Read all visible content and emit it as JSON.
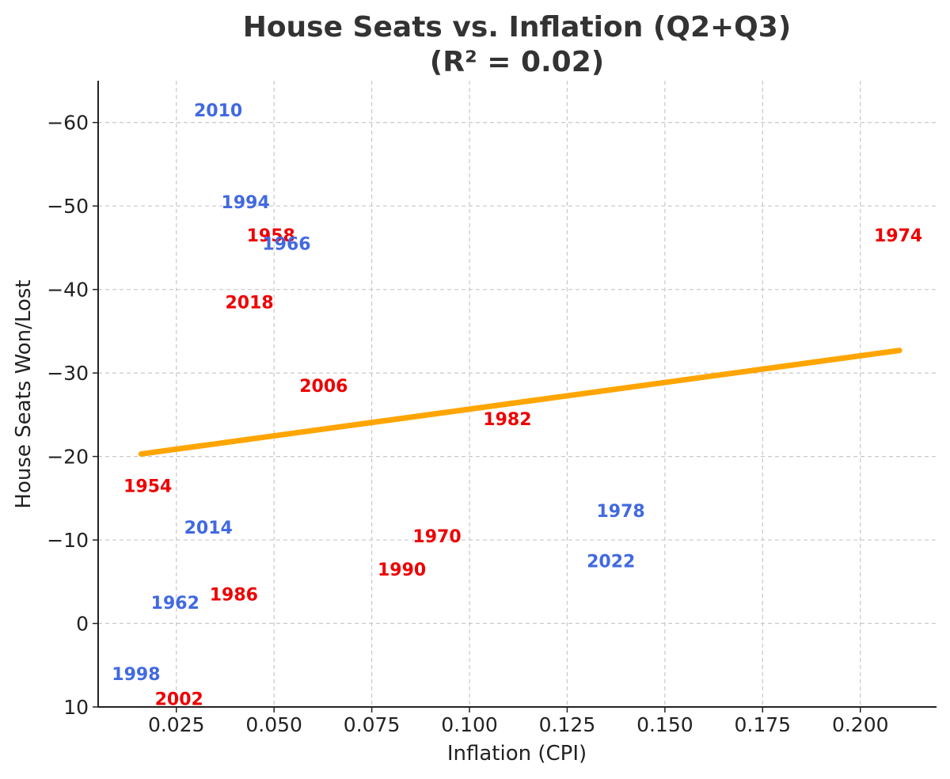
{
  "chart_data": {
    "type": "scatter",
    "title": [
      "House Seats vs. Inflation (Q2+Q3)",
      "(R² = 0.02)"
    ],
    "xlabel": "Inflation (CPI)",
    "ylabel": "House Seats Won/Lost",
    "xlim": [
      0.005,
      0.2195
    ],
    "ylim": [
      10,
      -65
    ],
    "y_inverted": true,
    "grid": true,
    "xticks": [
      {
        "value": 0.025,
        "label": "0.025"
      },
      {
        "value": 0.05,
        "label": "0.050"
      },
      {
        "value": 0.075,
        "label": "0.075"
      },
      {
        "value": 0.1,
        "label": "0.100"
      },
      {
        "value": 0.125,
        "label": "0.125"
      },
      {
        "value": 0.15,
        "label": "0.150"
      },
      {
        "value": 0.175,
        "label": "0.175"
      },
      {
        "value": 0.2,
        "label": "0.200"
      }
    ],
    "yticks": [
      {
        "value": -60,
        "label": "−60"
      },
      {
        "value": -50,
        "label": "−50"
      },
      {
        "value": -40,
        "label": "−40"
      },
      {
        "value": -30,
        "label": "−30"
      },
      {
        "value": -20,
        "label": "−20"
      },
      {
        "value": -10,
        "label": "−10"
      },
      {
        "value": 0,
        "label": "0"
      },
      {
        "value": 10,
        "label": "10"
      }
    ],
    "colors": {
      "democrat": "#4169e1",
      "republican": "#ee0000",
      "trend": "#ffa500"
    },
    "points": [
      {
        "label": "2010",
        "x": 0.0295,
        "y": -61.5,
        "party": "democrat"
      },
      {
        "label": "1994",
        "x": 0.0365,
        "y": -50.5,
        "party": "democrat"
      },
      {
        "label": "1958",
        "x": 0.043,
        "y": -46.5,
        "party": "republican"
      },
      {
        "label": "1966",
        "x": 0.047,
        "y": -45.5,
        "party": "democrat"
      },
      {
        "label": "1974",
        "x": 0.2035,
        "y": -46.5,
        "party": "republican"
      },
      {
        "label": "2018",
        "x": 0.0375,
        "y": -38.5,
        "party": "republican"
      },
      {
        "label": "2006",
        "x": 0.0565,
        "y": -28.5,
        "party": "republican"
      },
      {
        "label": "1982",
        "x": 0.1035,
        "y": -24.5,
        "party": "republican"
      },
      {
        "label": "1954",
        "x": 0.0115,
        "y": -16.5,
        "party": "republican"
      },
      {
        "label": "1978",
        "x": 0.1325,
        "y": -13.5,
        "party": "democrat"
      },
      {
        "label": "2014",
        "x": 0.027,
        "y": -11.5,
        "party": "democrat"
      },
      {
        "label": "1970",
        "x": 0.0855,
        "y": -10.5,
        "party": "republican"
      },
      {
        "label": "2022",
        "x": 0.13,
        "y": -7.5,
        "party": "democrat"
      },
      {
        "label": "1990",
        "x": 0.0765,
        "y": -6.5,
        "party": "republican"
      },
      {
        "label": "1986",
        "x": 0.0335,
        "y": -3.5,
        "party": "republican"
      },
      {
        "label": "1962",
        "x": 0.0185,
        "y": -2.5,
        "party": "democrat"
      },
      {
        "label": "1998",
        "x": 0.0085,
        "y": 6.0,
        "party": "democrat"
      },
      {
        "label": "2002",
        "x": 0.0195,
        "y": 9.0,
        "party": "republican"
      }
    ],
    "trendline": {
      "x": [
        0.016,
        0.21
      ],
      "y": [
        -20.3,
        -32.7
      ]
    }
  }
}
